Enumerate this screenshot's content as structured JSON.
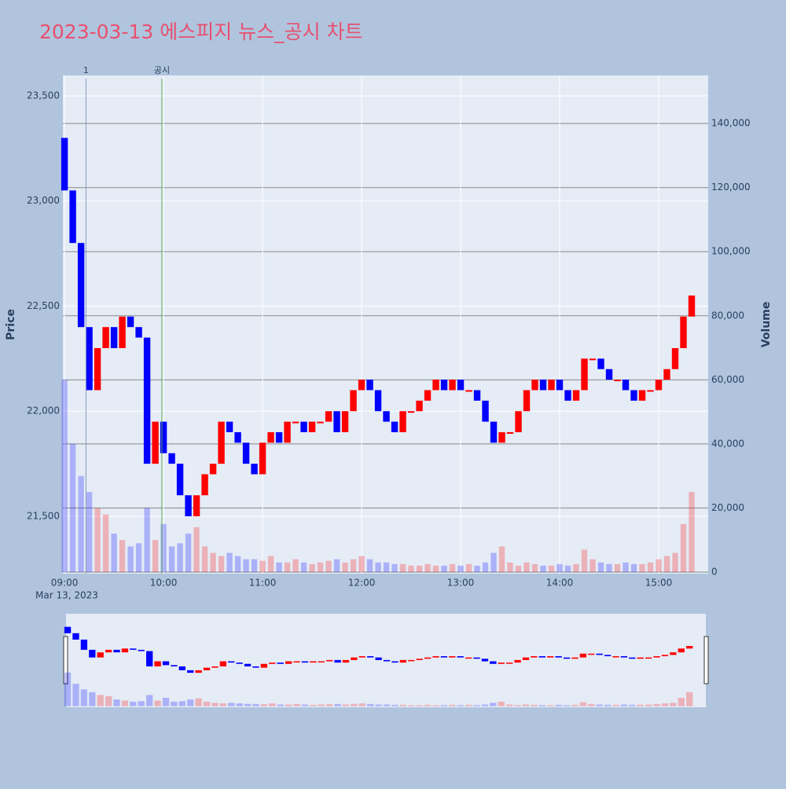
{
  "chart_data": {
    "type": "candlestick",
    "title": "2023-03-13 에스피지 뉴스_공시 차트",
    "yaxis_title": "Price",
    "y2axis_title": "Volume",
    "date_label": "Mar 13, 2023",
    "up_color": "#ff0000",
    "down_color": "#0000ff",
    "x": [
      "09:00",
      "09:05",
      "09:10",
      "09:15",
      "09:20",
      "09:25",
      "09:30",
      "09:35",
      "09:40",
      "09:45",
      "09:50",
      "09:55",
      "10:00",
      "10:05",
      "10:10",
      "10:15",
      "10:20",
      "10:25",
      "10:30",
      "10:35",
      "10:40",
      "10:45",
      "10:50",
      "10:55",
      "11:00",
      "11:05",
      "11:10",
      "11:15",
      "11:20",
      "11:25",
      "11:30",
      "11:35",
      "11:40",
      "11:45",
      "11:50",
      "11:55",
      "12:00",
      "12:05",
      "12:10",
      "12:15",
      "12:20",
      "12:25",
      "12:30",
      "12:35",
      "12:40",
      "12:45",
      "12:50",
      "12:55",
      "13:00",
      "13:05",
      "13:10",
      "13:15",
      "13:20",
      "13:25",
      "13:30",
      "13:35",
      "13:40",
      "13:45",
      "13:50",
      "13:55",
      "14:00",
      "14:05",
      "14:10",
      "14:15",
      "14:20",
      "14:25",
      "14:30",
      "14:35",
      "14:40",
      "14:45",
      "14:50",
      "14:55",
      "15:00",
      "15:05",
      "15:10",
      "15:15",
      "15:20"
    ],
    "open": [
      23300,
      23050,
      22800,
      22400,
      22100,
      22300,
      22400,
      22300,
      22450,
      22400,
      22350,
      21750,
      21950,
      21800,
      21750,
      21600,
      21500,
      21600,
      21700,
      21750,
      21950,
      21900,
      21850,
      21750,
      21700,
      21850,
      21900,
      21850,
      21950,
      21950,
      21900,
      21950,
      21950,
      22000,
      21900,
      22000,
      22100,
      22150,
      22100,
      22000,
      21950,
      21900,
      22000,
      22000,
      22050,
      22100,
      22150,
      22100,
      22150,
      22100,
      22100,
      22050,
      21950,
      21850,
      21900,
      21900,
      22000,
      22100,
      22150,
      22100,
      22150,
      22100,
      22050,
      22100,
      22250,
      22250,
      22200,
      22150,
      22150,
      22100,
      22050,
      22100,
      22100,
      22150,
      22200,
      22300,
      22450
    ],
    "close": [
      23050,
      22800,
      22400,
      22100,
      22300,
      22400,
      22300,
      22450,
      22400,
      22350,
      21750,
      21950,
      21800,
      21750,
      21600,
      21500,
      21600,
      21700,
      21750,
      21950,
      21900,
      21850,
      21750,
      21700,
      21850,
      21900,
      21850,
      21950,
      21950,
      21900,
      21950,
      21950,
      22000,
      21900,
      22000,
      22100,
      22150,
      22100,
      22000,
      21950,
      21900,
      22000,
      22000,
      22050,
      22100,
      22150,
      22100,
      22150,
      22100,
      22100,
      22050,
      21950,
      21850,
      21900,
      21900,
      22000,
      22100,
      22150,
      22100,
      22150,
      22100,
      22050,
      22100,
      22250,
      22250,
      22200,
      22150,
      22150,
      22100,
      22050,
      22100,
      22100,
      22150,
      22200,
      22300,
      22450,
      22550
    ],
    "volume": [
      60000,
      40000,
      30000,
      25000,
      20000,
      18000,
      12000,
      10000,
      8000,
      9000,
      20000,
      10000,
      15000,
      8000,
      9000,
      12000,
      14000,
      8000,
      6000,
      5000,
      6000,
      5000,
      4000,
      4000,
      3500,
      5000,
      3000,
      3000,
      4000,
      3000,
      2500,
      3000,
      3500,
      4000,
      3000,
      4000,
      5000,
      4000,
      3000,
      3000,
      2500,
      2500,
      2000,
      2000,
      2500,
      2000,
      2000,
      2500,
      2000,
      2500,
      2000,
      3000,
      6000,
      8000,
      3000,
      2000,
      3000,
      2500,
      2000,
      2000,
      2500,
      2000,
      2500,
      7000,
      4000,
      3000,
      2500,
      2500,
      3000,
      2500,
      2500,
      3000,
      4000,
      5000,
      6000,
      15000,
      25000
    ],
    "xlim": [
      "08:59",
      "15:30"
    ],
    "xticks": [
      "09:00",
      "10:00",
      "11:00",
      "12:00",
      "13:00",
      "14:00",
      "15:00"
    ],
    "ylim": [
      21227,
      23597
    ],
    "yticks": [
      {
        "value": 21500,
        "label": "21,500"
      },
      {
        "value": 22000,
        "label": "22,000"
      },
      {
        "value": 22500,
        "label": "22,500"
      },
      {
        "value": 23000,
        "label": "23,000"
      },
      {
        "value": 23500,
        "label": "23,500"
      }
    ],
    "y2lim": [
      -500,
      155000
    ],
    "y2ticks": [
      0,
      {
        "value": 20000,
        "label": "20,000"
      },
      {
        "value": 40000,
        "label": "40,000"
      },
      {
        "value": 60000,
        "label": "60,000"
      },
      {
        "value": 80000,
        "label": "80,000"
      },
      {
        "value": 100000,
        "label": "100,000"
      },
      {
        "value": 120000,
        "label": "120,000"
      },
      {
        "value": 140000,
        "label": "140,000"
      }
    ],
    "annotations": [
      {
        "x": "09:13",
        "text": "1",
        "color": "#8899bb"
      },
      {
        "x": "09:59",
        "text": "공시",
        "color": "#55aa55"
      }
    ],
    "grid": true
  }
}
